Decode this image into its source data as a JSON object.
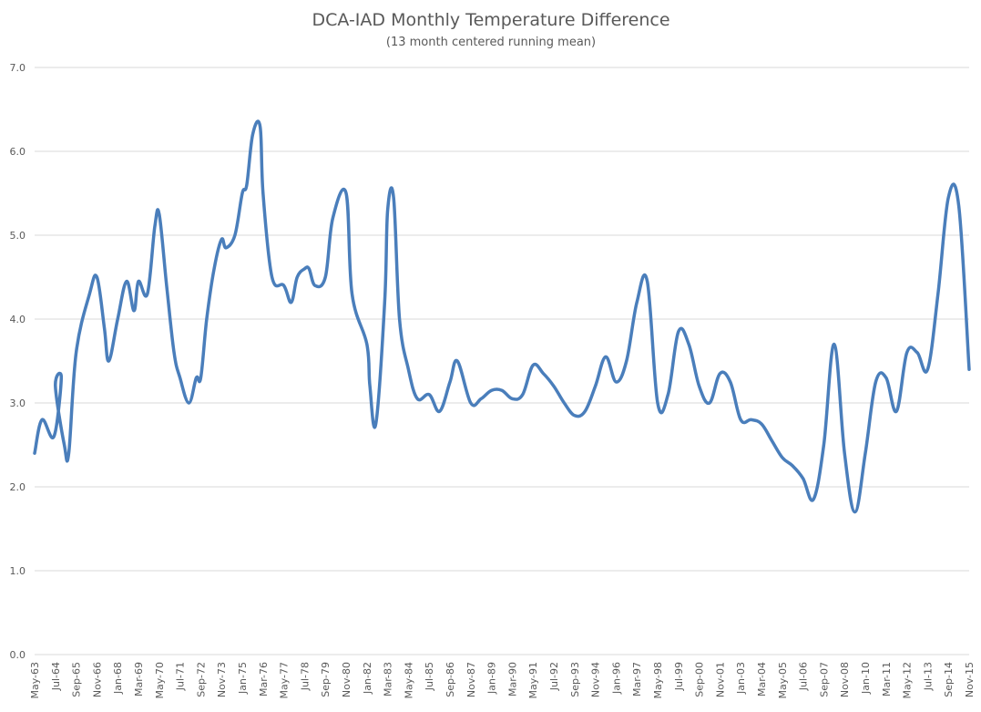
{
  "chart_data": {
    "type": "line",
    "title": "DCA-IAD Monthly Temperature Difference",
    "subtitle": "(13 month centered running mean)",
    "xlabel": "",
    "ylabel": "",
    "ylim": [
      0,
      7
    ],
    "y_ticks": [
      "0.0",
      "1.0",
      "2.0",
      "3.0",
      "4.0",
      "5.0",
      "6.0",
      "7.0"
    ],
    "x_tick_labels": [
      "May-63",
      "Jul-64",
      "Sep-65",
      "Nov-66",
      "Jan-68",
      "Mar-69",
      "May-70",
      "Jul-71",
      "Sep-72",
      "Nov-73",
      "Jan-75",
      "Mar-76",
      "May-77",
      "Jul-78",
      "Sep-79",
      "Nov-80",
      "Jan-82",
      "Mar-83",
      "May-84",
      "Jul-85",
      "Sep-86",
      "Nov-87",
      "Jan-89",
      "Mar-90",
      "May-91",
      "Jul-92",
      "Sep-93",
      "Nov-94",
      "Jan-96",
      "Mar-97",
      "May-98",
      "Jul-99",
      "Sep-00",
      "Nov-01",
      "Jan-03",
      "Mar-04",
      "May-05",
      "Jul-06",
      "Sep-07",
      "Nov-08",
      "Jan-10",
      "Mar-11",
      "May-12",
      "Jul-13",
      "Sep-14",
      "Nov-15"
    ],
    "grid": true,
    "line_color": "#4a7ebb",
    "series": [
      {
        "x": [
          "May-63",
          "Oct-63",
          "Jun-64",
          "Nov-64",
          "Jul-64",
          "Jan-65",
          "Apr-65",
          "Sep-65",
          "Jun-66",
          "Nov-66",
          "Apr-67",
          "Jul-67",
          "Jan-68",
          "Jul-68",
          "Dec-68",
          "Mar-69",
          "Sep-69",
          "Feb-70",
          "May-70",
          "Oct-70",
          "Mar-71",
          "Jul-71",
          "Jan-72",
          "Jun-72",
          "Sep-72",
          "Jan-73",
          "Jun-73",
          "Nov-73",
          "Feb-74",
          "Aug-74",
          "Jan-75",
          "Apr-75",
          "Aug-75",
          "Jan-76",
          "Mar-76",
          "Sep-76",
          "May-77",
          "Oct-77",
          "Feb-78",
          "Jul-78",
          "Oct-78",
          "Feb-79",
          "Sep-79",
          "Feb-80",
          "Nov-80",
          "Mar-81",
          "Jan-82",
          "Mar-82",
          "Jul-82",
          "Jan-83",
          "Mar-83",
          "Jul-83",
          "Nov-83",
          "May-84",
          "Nov-84",
          "Jul-85",
          "Feb-86",
          "Sep-86",
          "Feb-87",
          "Nov-87",
          "Jun-88",
          "Jan-89",
          "Aug-89",
          "Mar-90",
          "Oct-90",
          "May-91",
          "Dec-91",
          "Jul-92",
          "Feb-93",
          "Sep-93",
          "Apr-94",
          "Nov-94",
          "Jun-95",
          "Jan-96",
          "Aug-96",
          "Mar-97",
          "Oct-97",
          "May-98",
          "Dec-98",
          "Jul-99",
          "Feb-00",
          "Sep-00",
          "Apr-01",
          "Nov-01",
          "Jun-02",
          "Jan-03",
          "Aug-03",
          "Mar-04",
          "Oct-04",
          "May-05",
          "Dec-05",
          "Jul-06",
          "Feb-07",
          "Sep-07",
          "Apr-08",
          "Nov-08",
          "Jun-09",
          "Jan-10",
          "Aug-10",
          "Mar-11",
          "Oct-11",
          "May-12",
          "Dec-12",
          "Jul-13",
          "Feb-14",
          "Sep-14",
          "Apr-15",
          "Nov-15"
        ],
        "values": [
          2.4,
          2.8,
          2.6,
          3.3,
          3.2,
          2.5,
          2.4,
          3.6,
          4.3,
          4.5,
          3.9,
          3.5,
          4.0,
          4.45,
          4.1,
          4.45,
          4.3,
          5.1,
          5.25,
          4.4,
          3.6,
          3.3,
          3.0,
          3.3,
          3.3,
          4.0,
          4.6,
          4.95,
          4.85,
          5.0,
          5.5,
          5.6,
          6.2,
          6.3,
          5.5,
          4.5,
          4.4,
          4.2,
          4.5,
          4.6,
          4.6,
          4.4,
          4.5,
          5.2,
          5.5,
          4.3,
          3.7,
          3.2,
          2.75,
          4.2,
          5.3,
          5.45,
          4.0,
          3.4,
          3.05,
          3.1,
          2.9,
          3.25,
          3.5,
          3.0,
          3.05,
          3.15,
          3.15,
          3.05,
          3.1,
          3.45,
          3.35,
          3.2,
          3.0,
          2.85,
          2.9,
          3.2,
          3.55,
          3.25,
          3.5,
          4.2,
          4.45,
          3.0,
          3.1,
          3.85,
          3.7,
          3.2,
          3.0,
          3.35,
          3.25,
          2.8,
          2.8,
          2.75,
          2.55,
          2.35,
          2.25,
          2.1,
          1.85,
          2.5,
          3.7,
          2.4,
          1.7,
          2.4,
          3.25,
          3.3,
          2.9,
          3.6,
          3.6,
          3.4,
          4.3,
          5.45,
          5.35,
          3.4
        ]
      }
    ]
  }
}
